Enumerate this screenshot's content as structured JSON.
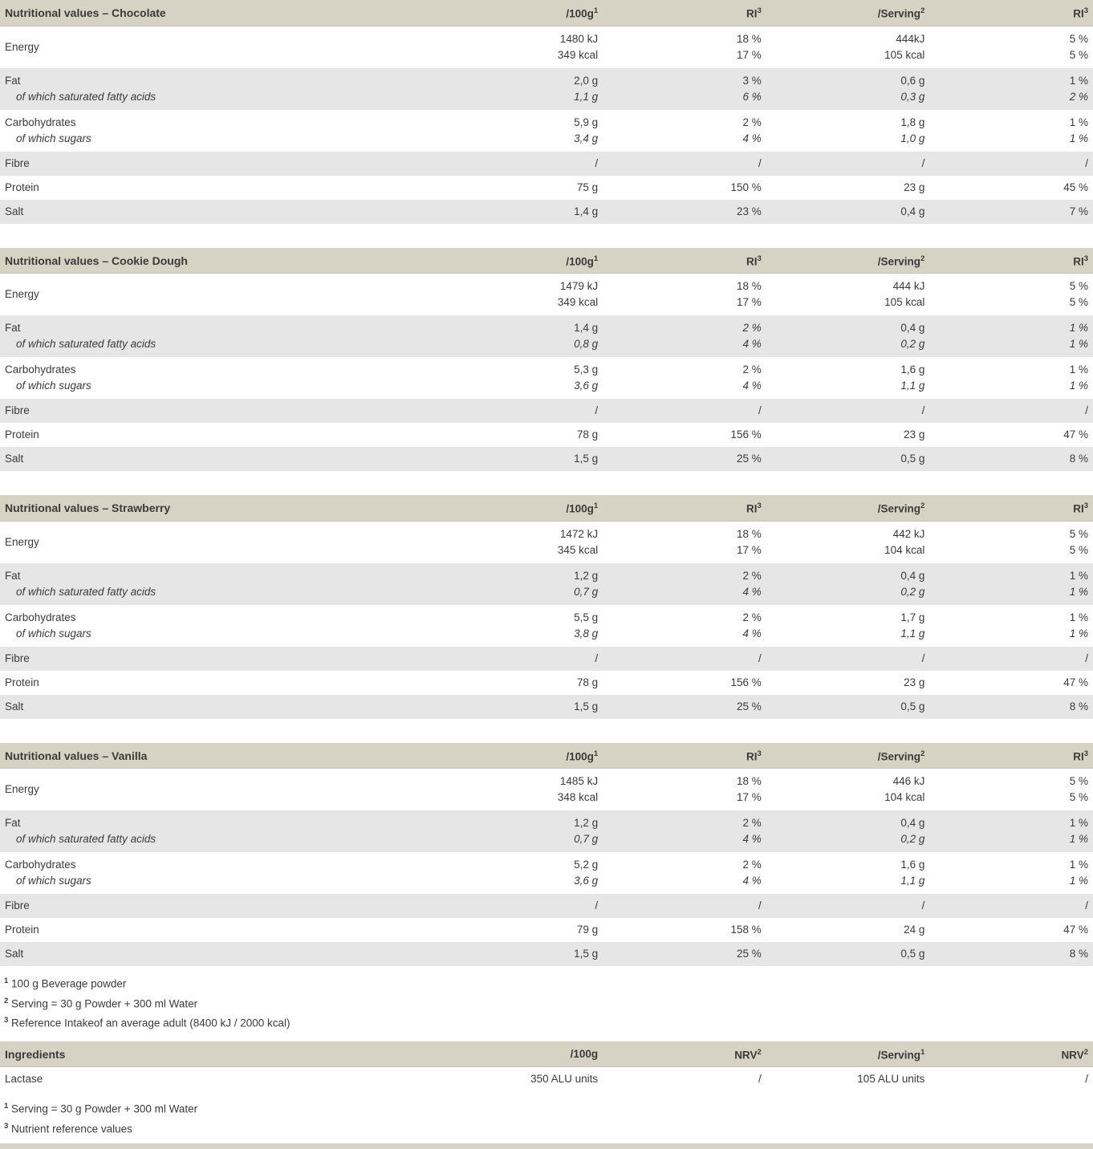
{
  "theme": {
    "text_color": "#3b3b3a",
    "header_bg": "#d6d2c4",
    "header_border": "#c9c5b7",
    "shaded_row_bg": "#e6e6e6"
  },
  "nutrition_tables": [
    {
      "title": "Nutritional values – Chocolate",
      "columns": [
        {
          "label": "/100g",
          "sup": "1"
        },
        {
          "label": "RI",
          "sup": "3"
        },
        {
          "label": "/Serving",
          "sup": "2"
        },
        {
          "label": "RI",
          "sup": "3"
        }
      ],
      "rows": [
        {
          "label": "Energy",
          "shaded": false,
          "values": [
            [
              "1480 kJ",
              "18 %",
              "444kJ",
              "5 %"
            ],
            [
              "349 kcal",
              "17 %",
              "105 kcal",
              "5 %"
            ]
          ],
          "italics": [
            [
              0,
              0,
              0,
              0
            ],
            [
              0,
              0,
              0,
              0
            ]
          ]
        },
        {
          "label": "Fat",
          "sublabel": "of which saturated fatty acids",
          "shaded": true,
          "values": [
            [
              "2,0 g",
              "3 %",
              "0,6 g",
              "1 %"
            ],
            [
              "1,1 g",
              "6 %",
              "0,3 g",
              "2 %"
            ]
          ],
          "italics": [
            [
              0,
              0,
              0,
              0
            ],
            [
              1,
              1,
              1,
              1
            ]
          ]
        },
        {
          "label": "Carbohydrates",
          "sublabel": "of which sugars",
          "shaded": false,
          "values": [
            [
              "5,9 g",
              "2 %",
              "1,8 g",
              "1 %"
            ],
            [
              "3,4 g",
              "4 %",
              "1,0 g",
              "1 %"
            ]
          ],
          "italics": [
            [
              0,
              0,
              0,
              0
            ],
            [
              1,
              1,
              1,
              1
            ]
          ]
        },
        {
          "label": "Fibre",
          "shaded": true,
          "values": [
            [
              "/",
              "/",
              "/",
              "/"
            ]
          ],
          "italics": [
            [
              0,
              0,
              0,
              0
            ]
          ]
        },
        {
          "label": "Protein",
          "shaded": false,
          "values": [
            [
              "75 g",
              "150 %",
              "23 g",
              "45 %"
            ]
          ],
          "italics": [
            [
              0,
              0,
              0,
              0
            ]
          ]
        },
        {
          "label": "Salt",
          "shaded": true,
          "values": [
            [
              "1,4 g",
              "23 %",
              "0,4 g",
              "7 %"
            ]
          ],
          "italics": [
            [
              0,
              0,
              0,
              0
            ]
          ]
        }
      ]
    },
    {
      "title": "Nutritional values – Cookie Dough",
      "columns": [
        {
          "label": "/100g",
          "sup": "1"
        },
        {
          "label": "RI",
          "sup": "3"
        },
        {
          "label": "/Serving",
          "sup": "2"
        },
        {
          "label": "RI",
          "sup": "3"
        }
      ],
      "rows": [
        {
          "label": "Energy",
          "shaded": false,
          "values": [
            [
              "1479 kJ",
              "18 %",
              "444 kJ",
              "5 %"
            ],
            [
              "349 kcal",
              "17 %",
              "105 kcal",
              "5 %"
            ]
          ],
          "italics": [
            [
              0,
              0,
              0,
              0
            ],
            [
              0,
              0,
              0,
              0
            ]
          ]
        },
        {
          "label": "Fat",
          "sublabel": "of which saturated fatty acids",
          "shaded": true,
          "values": [
            [
              "1,4 g",
              "2 %",
              "0,4 g",
              "1 %"
            ],
            [
              "0,8 g",
              "4 %",
              "0,2 g",
              "1 %"
            ]
          ],
          "italics": [
            [
              0,
              1,
              0,
              1
            ],
            [
              1,
              1,
              1,
              1
            ]
          ]
        },
        {
          "label": "Carbohydrates",
          "sublabel": "of which sugars",
          "shaded": false,
          "values": [
            [
              "5,3 g",
              "2 %",
              "1,6 g",
              "1 %"
            ],
            [
              "3,6 g",
              "4 %",
              "1,1 g",
              "1 %"
            ]
          ],
          "italics": [
            [
              0,
              0,
              0,
              0
            ],
            [
              1,
              1,
              1,
              1
            ]
          ]
        },
        {
          "label": "Fibre",
          "shaded": true,
          "values": [
            [
              "/",
              "/",
              "/",
              "/"
            ]
          ],
          "italics": [
            [
              0,
              0,
              0,
              0
            ]
          ]
        },
        {
          "label": "Protein",
          "shaded": false,
          "values": [
            [
              "78 g",
              "156 %",
              "23 g",
              "47 %"
            ]
          ],
          "italics": [
            [
              0,
              0,
              0,
              0
            ]
          ]
        },
        {
          "label": "Salt",
          "shaded": true,
          "values": [
            [
              "1,5 g",
              "25 %",
              "0,5 g",
              "8 %"
            ]
          ],
          "italics": [
            [
              0,
              0,
              0,
              0
            ]
          ]
        }
      ]
    },
    {
      "title": "Nutritional values – Strawberry",
      "columns": [
        {
          "label": "/100g",
          "sup": "1"
        },
        {
          "label": "RI",
          "sup": "3"
        },
        {
          "label": "/Serving",
          "sup": "2"
        },
        {
          "label": "RI",
          "sup": "3"
        }
      ],
      "rows": [
        {
          "label": "Energy",
          "shaded": false,
          "values": [
            [
              "1472 kJ",
              "18 %",
              "442 kJ",
              "5 %"
            ],
            [
              "345 kcal",
              "17 %",
              "104 kcal",
              "5 %"
            ]
          ],
          "italics": [
            [
              0,
              0,
              0,
              0
            ],
            [
              0,
              0,
              0,
              0
            ]
          ]
        },
        {
          "label": "Fat",
          "sublabel": "of which saturated fatty acids",
          "shaded": true,
          "values": [
            [
              "1,2 g",
              "2 %",
              "0,4 g",
              "1 %"
            ],
            [
              "0,7 g",
              "4 %",
              "0,2 g",
              "1 %"
            ]
          ],
          "italics": [
            [
              0,
              0,
              0,
              0
            ],
            [
              1,
              1,
              1,
              1
            ]
          ]
        },
        {
          "label": "Carbohydrates",
          "sublabel": "of which sugars",
          "shaded": false,
          "values": [
            [
              "5,5 g",
              "2 %",
              "1,7 g",
              "1 %"
            ],
            [
              "3,8 g",
              "4 %",
              "1,1 g",
              "1 %"
            ]
          ],
          "italics": [
            [
              0,
              0,
              0,
              0
            ],
            [
              1,
              1,
              1,
              1
            ]
          ]
        },
        {
          "label": "Fibre",
          "shaded": true,
          "values": [
            [
              "/",
              "/",
              "/",
              "/"
            ]
          ],
          "italics": [
            [
              0,
              0,
              0,
              0
            ]
          ]
        },
        {
          "label": "Protein",
          "shaded": false,
          "values": [
            [
              "78 g",
              "156 %",
              "23 g",
              "47 %"
            ]
          ],
          "italics": [
            [
              0,
              0,
              0,
              0
            ]
          ]
        },
        {
          "label": "Salt",
          "shaded": true,
          "values": [
            [
              "1,5 g",
              "25 %",
              "0,5 g",
              "8 %"
            ]
          ],
          "italics": [
            [
              0,
              0,
              0,
              0
            ]
          ]
        }
      ]
    },
    {
      "title": "Nutritional values – Vanilla",
      "columns": [
        {
          "label": "/100g",
          "sup": "1"
        },
        {
          "label": "RI",
          "sup": "3"
        },
        {
          "label": "/Serving",
          "sup": "2"
        },
        {
          "label": "RI",
          "sup": "3"
        }
      ],
      "rows": [
        {
          "label": "Energy",
          "shaded": false,
          "values": [
            [
              "1485 kJ",
              "18 %",
              "446 kJ",
              "5 %"
            ],
            [
              "348 kcal",
              "17 %",
              "104 kcal",
              "5 %"
            ]
          ],
          "italics": [
            [
              0,
              0,
              0,
              0
            ],
            [
              0,
              0,
              0,
              0
            ]
          ]
        },
        {
          "label": "Fat",
          "sublabel": "of which saturated fatty acids",
          "shaded": true,
          "values": [
            [
              "1,2 g",
              "2 %",
              "0,4 g",
              "1 %"
            ],
            [
              "0,7 g",
              "4 %",
              "0,2 g",
              "1 %"
            ]
          ],
          "italics": [
            [
              0,
              0,
              0,
              0
            ],
            [
              1,
              1,
              1,
              1
            ]
          ]
        },
        {
          "label": "Carbohydrates",
          "sublabel": "of which sugars",
          "shaded": false,
          "values": [
            [
              "5,2 g",
              "2 %",
              "1,6 g",
              "1 %"
            ],
            [
              "3,6 g",
              "4 %",
              "1,1 g",
              "1 %"
            ]
          ],
          "italics": [
            [
              0,
              0,
              0,
              0
            ],
            [
              1,
              1,
              1,
              1
            ]
          ]
        },
        {
          "label": "Fibre",
          "shaded": true,
          "values": [
            [
              "/",
              "/",
              "/",
              "/"
            ]
          ],
          "italics": [
            [
              0,
              0,
              0,
              0
            ]
          ]
        },
        {
          "label": "Protein",
          "shaded": false,
          "values": [
            [
              "79 g",
              "158 %",
              "24 g",
              "47 %"
            ]
          ],
          "italics": [
            [
              0,
              0,
              0,
              0
            ]
          ]
        },
        {
          "label": "Salt",
          "shaded": true,
          "values": [
            [
              "1,5 g",
              "25 %",
              "0,5 g",
              "8 %"
            ]
          ],
          "italics": [
            [
              0,
              0,
              0,
              0
            ]
          ]
        }
      ]
    }
  ],
  "nutrition_footnotes": [
    {
      "sup": "1",
      "text": "100 g Beverage powder"
    },
    {
      "sup": "2",
      "text": "Serving = 30 g Powder + 300 ml Water"
    },
    {
      "sup": "3",
      "text": "Reference Intakeof an average adult (8400 kJ / 2000 kcal)"
    }
  ],
  "ingredients_table": {
    "title": "Ingredients",
    "columns": [
      {
        "label": "/100g",
        "sup": ""
      },
      {
        "label": "NRV",
        "sup": "2"
      },
      {
        "label": "/Serving",
        "sup": "1"
      },
      {
        "label": "NRV",
        "sup": "2"
      }
    ],
    "rows": [
      {
        "label": "Lactase",
        "shaded": false,
        "values": [
          [
            "350 ALU units",
            "/",
            "105 ALU units",
            "/"
          ]
        ],
        "italics": [
          [
            0,
            0,
            0,
            0
          ]
        ]
      }
    ]
  },
  "ingredients_footnotes": [
    {
      "sup": "1",
      "text": "Serving = 30 g Powder + 300 ml Water"
    },
    {
      "sup": "3",
      "text": "Nutrient reference values"
    }
  ]
}
